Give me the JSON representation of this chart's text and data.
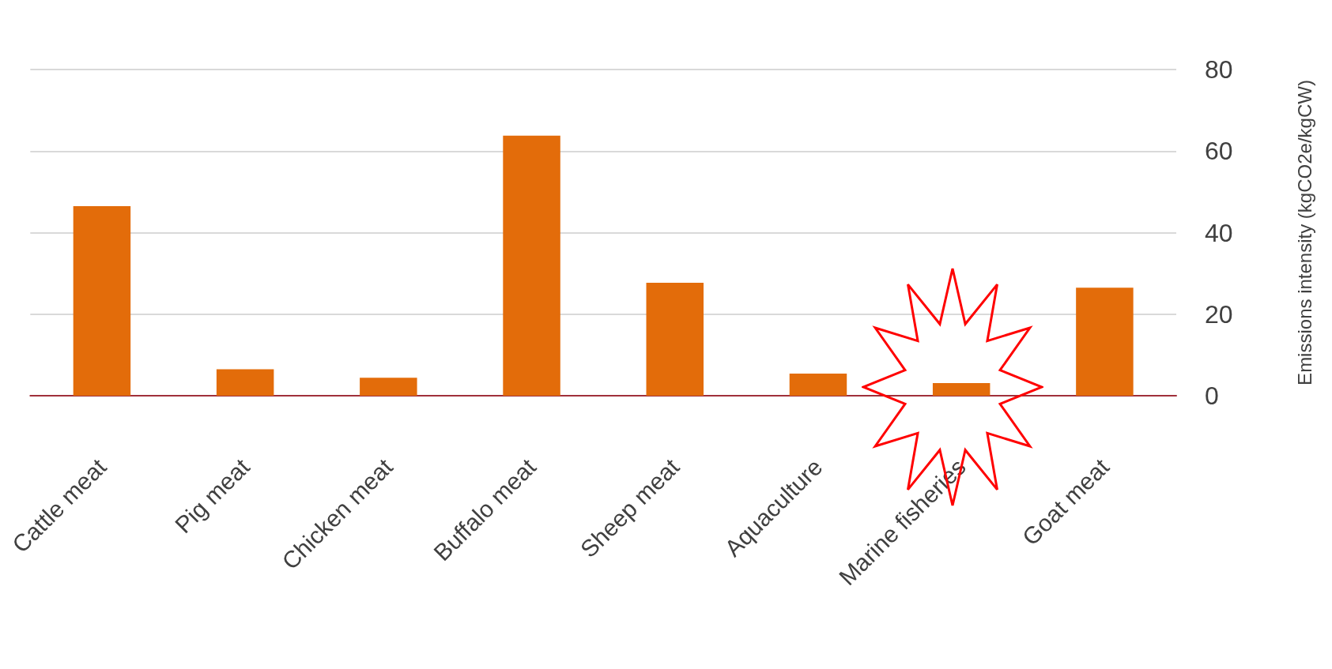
{
  "chart_data": {
    "type": "bar",
    "ylabel": "Emissions intensity (kgCO2e/kgCW)",
    "categories": [
      "Cattle meat",
      "Pig meat",
      "Chicken meat",
      "Buffalo meat",
      "Sheep meat",
      "Aquaculture",
      "Marine fisheries",
      "Goat meat"
    ],
    "values": [
      46.5,
      6.5,
      4.4,
      63.8,
      27.7,
      5.4,
      3.1,
      26.5
    ],
    "color": "#e36c0a",
    "ylim": [
      0,
      80
    ],
    "yticks": [
      0,
      20,
      40,
      60,
      80
    ],
    "grid": "y"
  }
}
